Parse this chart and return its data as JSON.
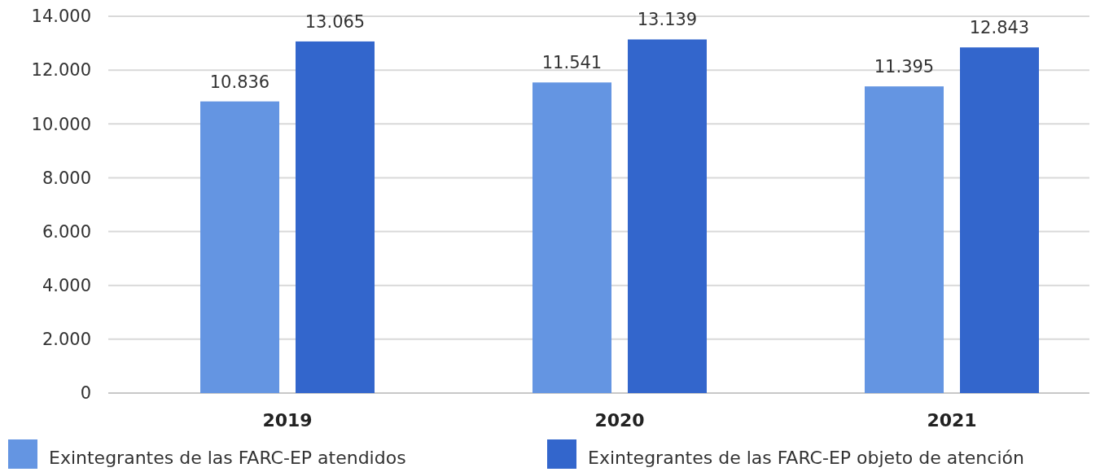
{
  "chart_data": {
    "type": "bar",
    "categories": [
      "2019",
      "2020",
      "2021"
    ],
    "series": [
      {
        "name": "Exintegrantes de las FARC-EP atendidos",
        "color": "#6495e2",
        "values": [
          10836,
          11541,
          11395
        ],
        "value_labels": [
          "10.836",
          "11.541",
          "11.395"
        ]
      },
      {
        "name": "Exintegrantes de las FARC-EP objeto de atención",
        "color": "#3366cc",
        "values": [
          13065,
          13139,
          12843
        ],
        "value_labels": [
          "13.065",
          "13.139",
          "12.843"
        ]
      }
    ],
    "ylim": [
      0,
      14000
    ],
    "yticks": [
      0,
      {
        "value": 2000,
        "label": "2.000"
      },
      {
        "value": 4000,
        "label": "4.000"
      },
      {
        "value": 6000,
        "label": "6.000"
      },
      {
        "value": 8000,
        "label": "8.000"
      },
      {
        "value": 10000,
        "label": "10.000"
      },
      {
        "value": 12000,
        "label": "12.000"
      },
      {
        "value": 14000,
        "label": "14.000"
      }
    ],
    "grid": "y",
    "legend": "bottom"
  }
}
